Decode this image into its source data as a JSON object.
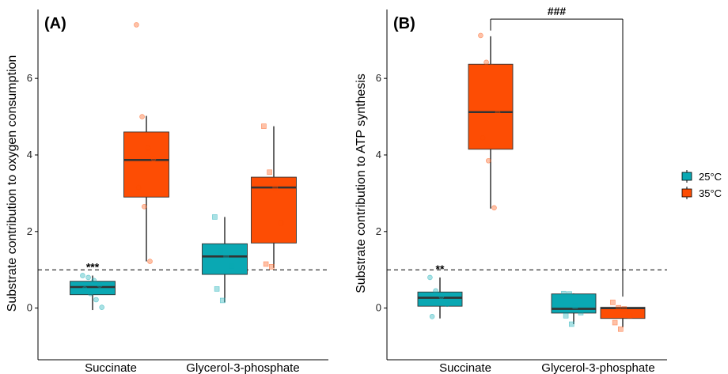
{
  "colors": {
    "25°C": "#0aa8b3",
    "35°C": "#fd4d04",
    "median": "#333333",
    "whisker": "#000000"
  },
  "legend": {
    "position": "right",
    "items": [
      {
        "label": "25°C",
        "color": "#0aa8b3"
      },
      {
        "label": "35°C",
        "color": "#fd4d04"
      }
    ]
  },
  "chart_data": [
    {
      "type": "box",
      "panel_label": "(A)",
      "ylabel": "Substrate contribution to oxygen consumption",
      "xlabel": "",
      "ylim": [
        -1.35,
        7.8
      ],
      "yticks": [
        0,
        2,
        4,
        6
      ],
      "reference_line": 1,
      "categories": [
        "Succinate",
        "Glycerol-3-phosphate"
      ],
      "boxes": [
        {
          "category": "Succinate",
          "group": "25°C",
          "q1": 0.35,
          "median": 0.55,
          "q3": 0.7,
          "whisker_low": -0.05,
          "whisker_high": 0.85,
          "points": [
            0.85,
            0.8,
            0.72,
            0.6,
            0.5,
            0.38,
            0.22,
            0.02
          ],
          "annotation": "***"
        },
        {
          "category": "Succinate",
          "group": "35°C",
          "q1": 2.9,
          "median": 3.87,
          "q3": 4.6,
          "whisker_low": 1.22,
          "whisker_high": 5.02,
          "points": [
            7.4,
            5.0,
            4.18,
            3.9,
            3.15,
            2.65,
            1.22
          ]
        },
        {
          "category": "Glycerol-3-phosphate",
          "group": "25°C",
          "q1": 0.88,
          "median": 1.35,
          "q3": 1.68,
          "whisker_low": 0.15,
          "whisker_high": 2.38,
          "points": [
            2.38,
            1.5,
            1.33,
            1.1,
            0.5,
            0.2
          ]
        },
        {
          "category": "Glycerol-3-phosphate",
          "group": "35°C",
          "q1": 1.7,
          "median": 3.15,
          "q3": 3.42,
          "whisker_low": 1.05,
          "whisker_high": 4.75,
          "points": [
            4.75,
            3.55,
            3.15,
            2.22,
            1.15,
            1.08
          ]
        }
      ]
    },
    {
      "type": "box",
      "panel_label": "(B)",
      "ylabel": "Substrate contribution to ATP synthesis",
      "xlabel": "",
      "ylim": [
        -1.35,
        7.8
      ],
      "yticks": [
        0,
        2,
        4,
        6
      ],
      "reference_line": 1,
      "categories": [
        "Succinate",
        "Glycerol-3-phosphate"
      ],
      "boxes": [
        {
          "category": "Succinate",
          "group": "25°C",
          "q1": 0.05,
          "median": 0.27,
          "q3": 0.42,
          "whisker_low": -0.27,
          "whisker_high": 0.8,
          "points": [
            0.8,
            0.45,
            0.3,
            0.1,
            -0.22
          ],
          "annotation": "**"
        },
        {
          "category": "Succinate",
          "group": "35°C",
          "q1": 4.15,
          "median": 5.12,
          "q3": 6.37,
          "whisker_low": 2.6,
          "whisker_high": 7.1,
          "points": [
            7.12,
            6.42,
            6.3,
            5.1,
            4.45,
            3.85,
            2.62
          ]
        },
        {
          "category": "Glycerol-3-phosphate",
          "group": "25°C",
          "q1": -0.13,
          "median": -0.02,
          "q3": 0.37,
          "whisker_low": -0.42,
          "whisker_high": 0.38,
          "points": [
            0.38,
            0.37,
            0.05,
            -0.12,
            -0.2,
            -0.42
          ]
        },
        {
          "category": "Glycerol-3-phosphate",
          "group": "35°C",
          "q1": -0.27,
          "median": 0.0,
          "q3": 0.02,
          "whisker_low": -0.5,
          "whisker_high": 0.02,
          "points": [
            0.15,
            0.01,
            -0.02,
            -0.2,
            -0.38,
            -0.55
          ]
        }
      ],
      "comparison": {
        "label": "###",
        "from": {
          "category": "Succinate",
          "group": "35°C",
          "start": 7.25
        },
        "to": {
          "category": "Glycerol-3-phosphate",
          "group": "35°C",
          "start": 0.3
        },
        "top": 7.55
      }
    }
  ]
}
